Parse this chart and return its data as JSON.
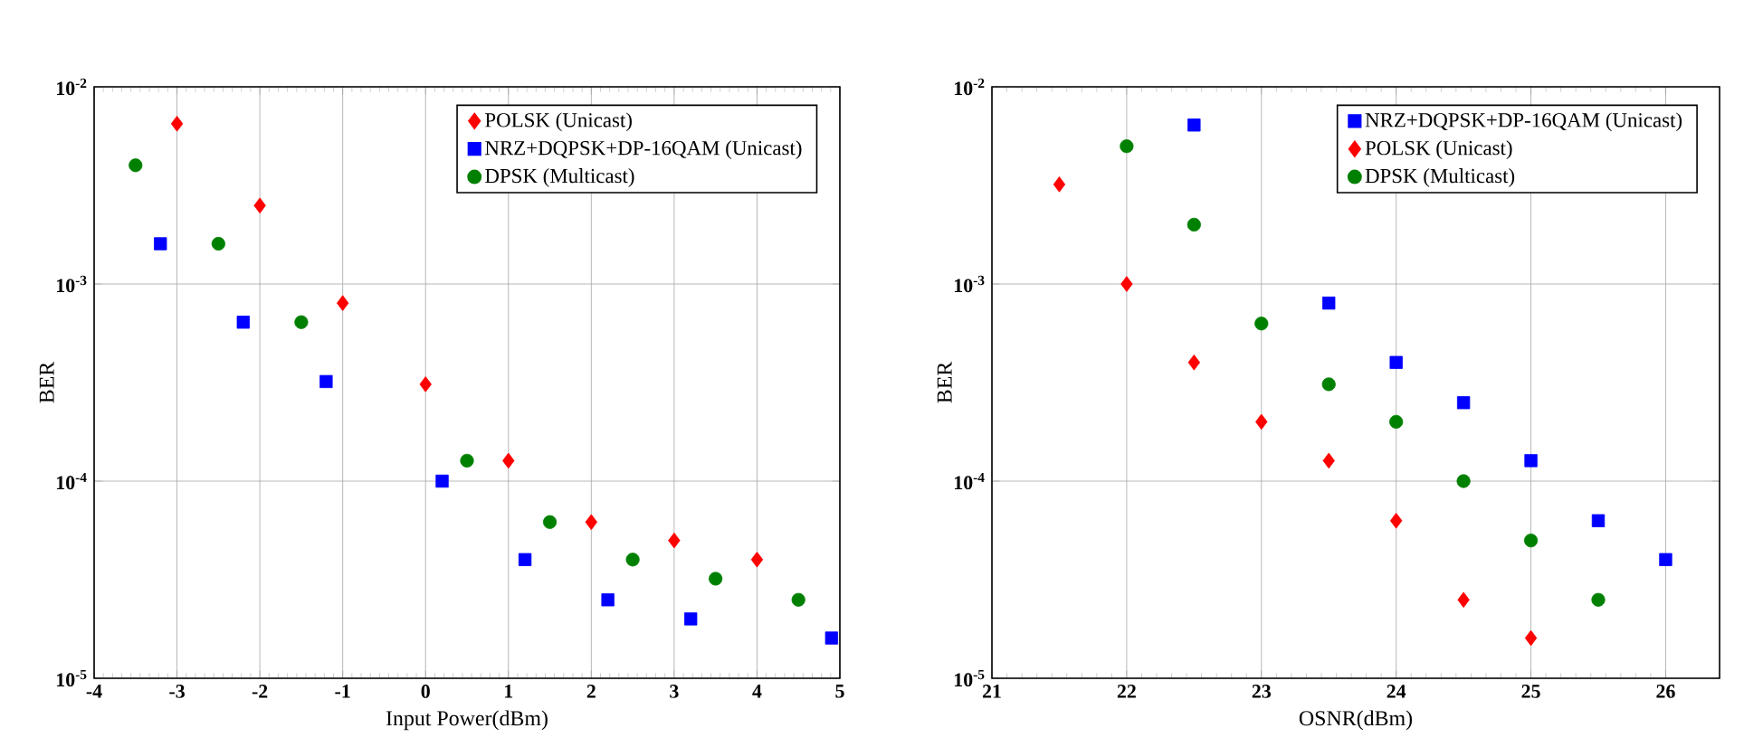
{
  "chart_data": [
    {
      "type": "scatter",
      "xlabel": "Input Power(dBm)",
      "ylabel": "BER",
      "log": "y",
      "grid": true,
      "legend": "top right",
      "xlim": [
        -4,
        5
      ],
      "xticks": [
        -4,
        -3,
        -2,
        -1,
        0,
        1,
        2,
        3,
        4,
        5
      ],
      "ylim": [
        1e-05,
        0.01
      ],
      "yticks": [
        {
          "value": 1e-05,
          "label": "10$^{-5}$"
        },
        {
          "value": 0.0001,
          "label": "10$^{-4}$"
        },
        {
          "value": 0.001,
          "label": "10$^{-3}$"
        },
        {
          "value": 0.01,
          "label": "10$^{-2}$"
        }
      ],
      "series": [
        {
          "name": "POLSK (Unicast)",
          "color": "#ff0000",
          "marker": "diamond",
          "x": [
            -3,
            -2,
            -1,
            0,
            1,
            2,
            3,
            4
          ],
          "values": [
            0.0065,
            0.0025,
            0.0008,
            0.00031,
            0.000127,
            6.2e-05,
            5e-05,
            4e-05
          ]
        },
        {
          "name": "NRZ+DQPSK+DP-16QAM (Unicast)",
          "color": "#0000ff",
          "marker": "square",
          "x": [
            -3.2,
            -2.2,
            -1.2,
            0.2,
            1.2,
            2.2,
            3.2,
            4.9
          ],
          "values": [
            0.0016,
            0.00064,
            0.00032,
            0.0001,
            4e-05,
            2.5e-05,
            2e-05,
            1.6e-05
          ]
        },
        {
          "name": "DPSK (Multicast)",
          "color": "#008000",
          "marker": "circle",
          "x": [
            -3.5,
            -2.5,
            -1.5,
            0.5,
            1.5,
            2.5,
            3.5,
            4.5
          ],
          "values": [
            0.004,
            0.0016,
            0.00064,
            0.000127,
            6.2e-05,
            4e-05,
            3.2e-05,
            2.5e-05
          ]
        }
      ]
    },
    {
      "type": "scatter",
      "xlabel": "OSNR(dBm)",
      "ylabel": "BER",
      "log": "y",
      "grid": true,
      "legend": "top right",
      "xlim": [
        21,
        26.4
      ],
      "xticks": [
        21,
        22,
        23,
        24,
        25,
        26
      ],
      "ylim": [
        1e-05,
        0.01
      ],
      "yticks": [
        {
          "value": 1e-05,
          "label": "10$^{-5}$"
        },
        {
          "value": 0.0001,
          "label": "10$^{-4}$"
        },
        {
          "value": 0.001,
          "label": "10$^{-3}$"
        },
        {
          "value": 0.01,
          "label": "10$^{-2}$"
        }
      ],
      "series": [
        {
          "name": "NRZ+DQPSK+DP-16QAM (Unicast)",
          "color": "#0000ff",
          "marker": "square",
          "x": [
            22.5,
            23.5,
            24,
            24.5,
            25,
            25.5,
            26
          ],
          "values": [
            0.0064,
            0.0008,
            0.0004,
            0.00025,
            0.000127,
            6.3e-05,
            4e-05
          ]
        },
        {
          "name": "POLSK (Unicast)",
          "color": "#ff0000",
          "marker": "diamond",
          "x": [
            21.5,
            22,
            22.5,
            23,
            23.5,
            24,
            24.5,
            25
          ],
          "values": [
            0.0032,
            0.001,
            0.0004,
            0.0002,
            0.000127,
            6.3e-05,
            2.5e-05,
            1.6e-05
          ]
        },
        {
          "name": "DPSK (Multicast)",
          "color": "#008000",
          "marker": "circle",
          "x": [
            22,
            22.5,
            23,
            23.5,
            24,
            24.5,
            25,
            25.5
          ],
          "values": [
            0.005,
            0.002,
            0.00063,
            0.00031,
            0.0002,
            0.0001,
            5e-05,
            2.5e-05
          ]
        }
      ]
    }
  ]
}
